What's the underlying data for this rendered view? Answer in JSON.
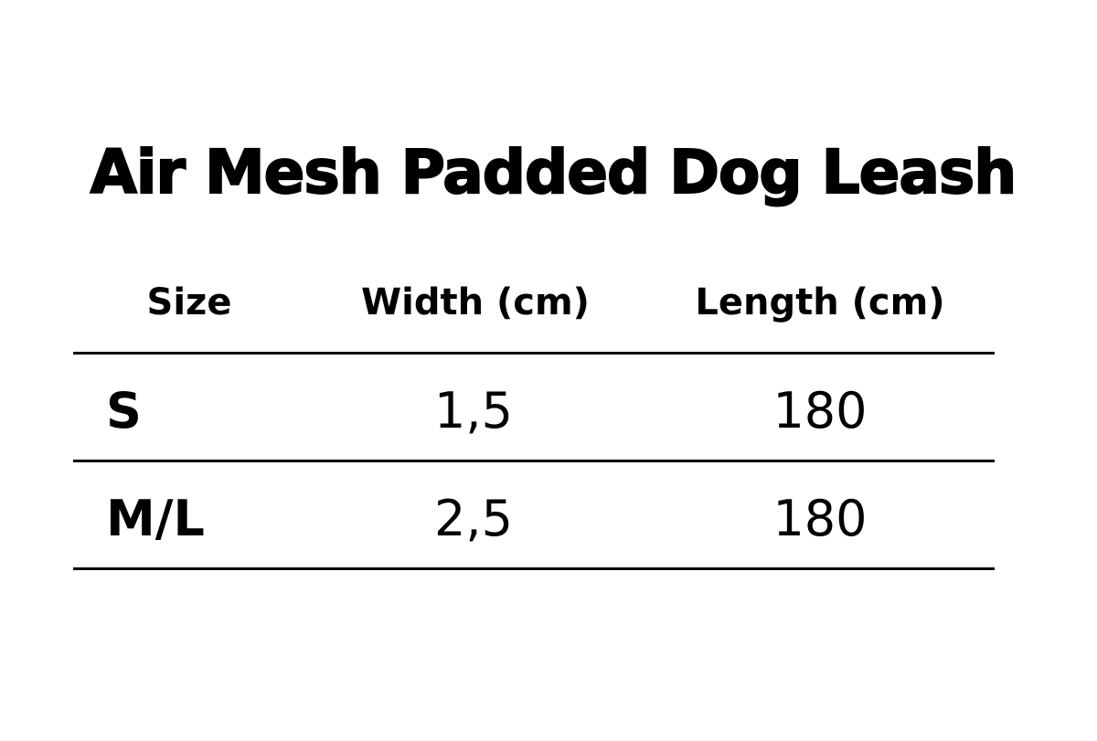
{
  "title": "Air Mesh Padded Dog Leash",
  "table": {
    "headers": [
      "Size",
      "Width (cm)",
      "Length (cm)"
    ],
    "rows": [
      {
        "size": "S",
        "width": "1,5",
        "length": "180"
      },
      {
        "size": "M/L",
        "width": "2,5",
        "length": "180"
      }
    ]
  }
}
